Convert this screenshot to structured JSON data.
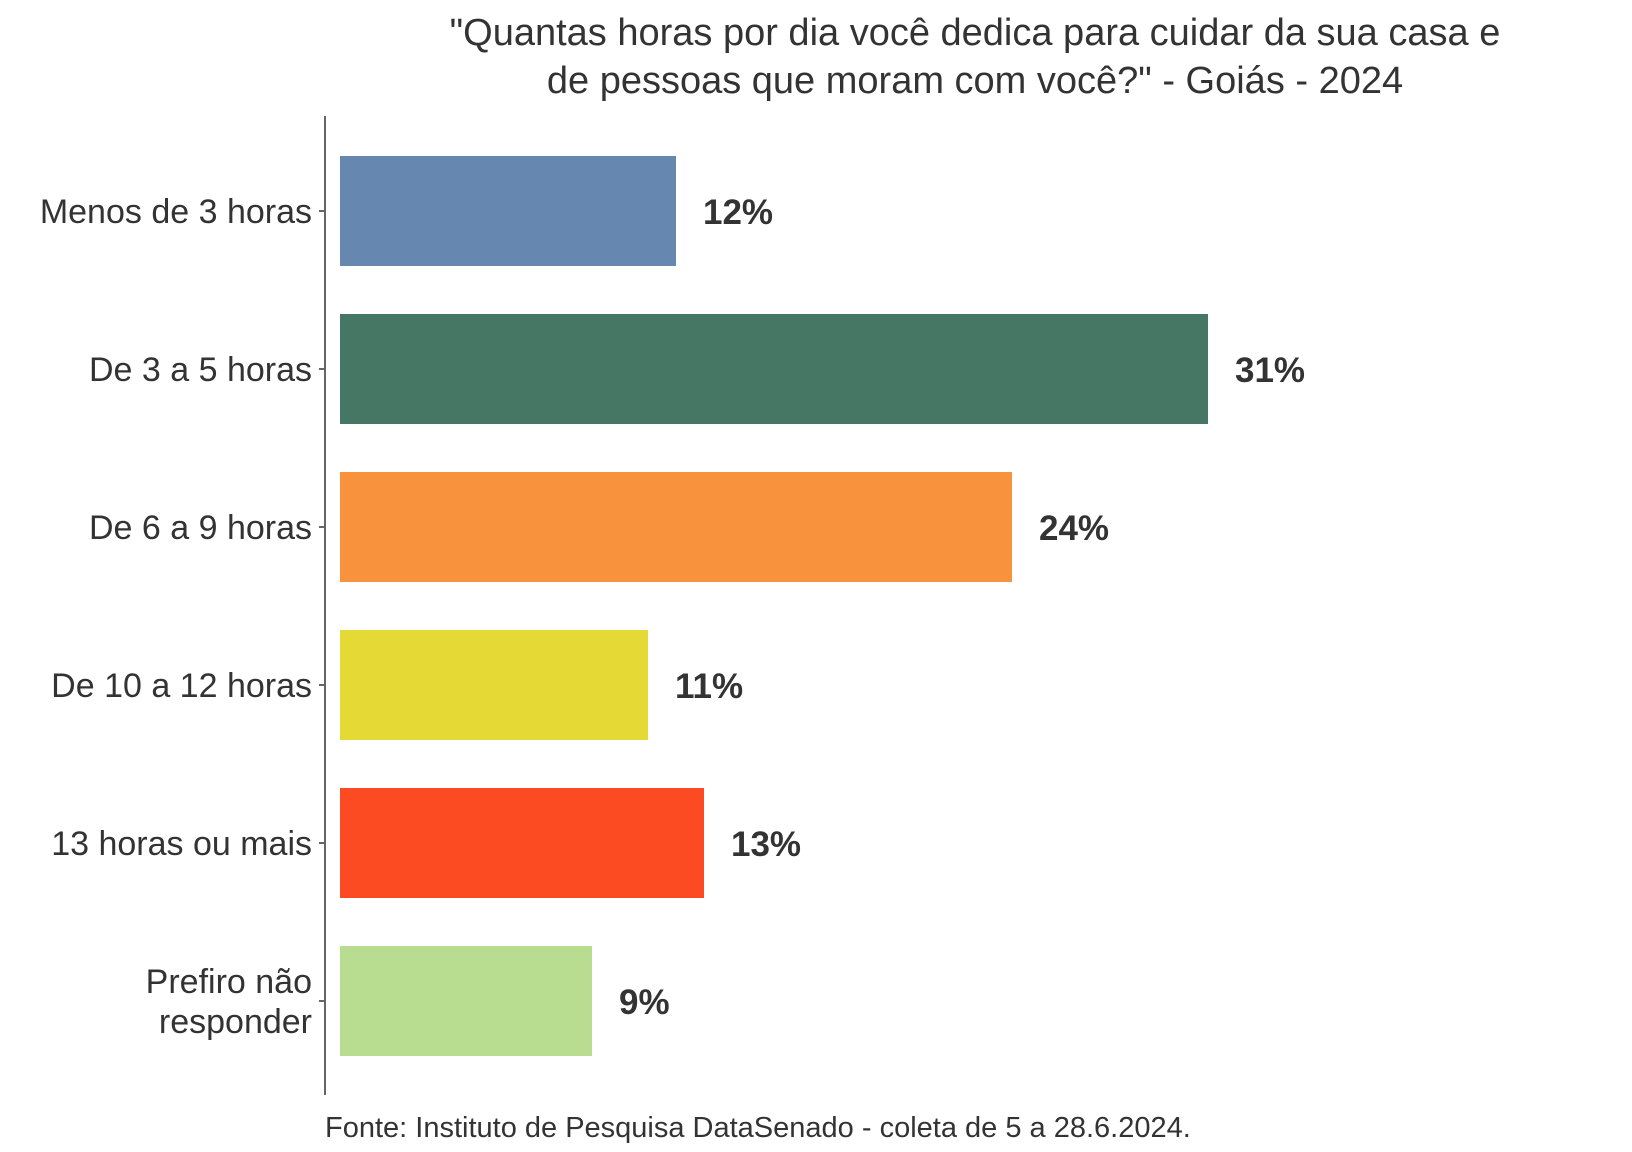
{
  "chart_data": {
    "type": "bar",
    "orientation": "horizontal",
    "title_lines": [
      "\"Quantas horas por dia você dedica para cuidar da sua casa e",
      "de pessoas que moram com você?\" - Goiás - 2024"
    ],
    "categories": [
      [
        "Menos de 3 horas"
      ],
      [
        "De 3 a 5 horas"
      ],
      [
        "De 6 a 9 horas"
      ],
      [
        "De 10 a 12 horas"
      ],
      [
        "13 horas ou mais"
      ],
      [
        "Prefiro não",
        "responder"
      ]
    ],
    "values": [
      12,
      31,
      24,
      11,
      13,
      9
    ],
    "value_labels": [
      "12%",
      "31%",
      "24%",
      "11%",
      "13%",
      "9%"
    ],
    "colors": [
      "#6688b0",
      "#467664",
      "#f9923c",
      "#e5d935",
      "#fc4a22",
      "#b8dc90"
    ],
    "xlabel": "",
    "ylabel": "",
    "xlim": [
      0,
      31
    ],
    "grid": false,
    "legend": "none",
    "source": "Fonte: Instituto de Pesquisa DataSenado - coleta de 5 a 28.6.2024."
  }
}
